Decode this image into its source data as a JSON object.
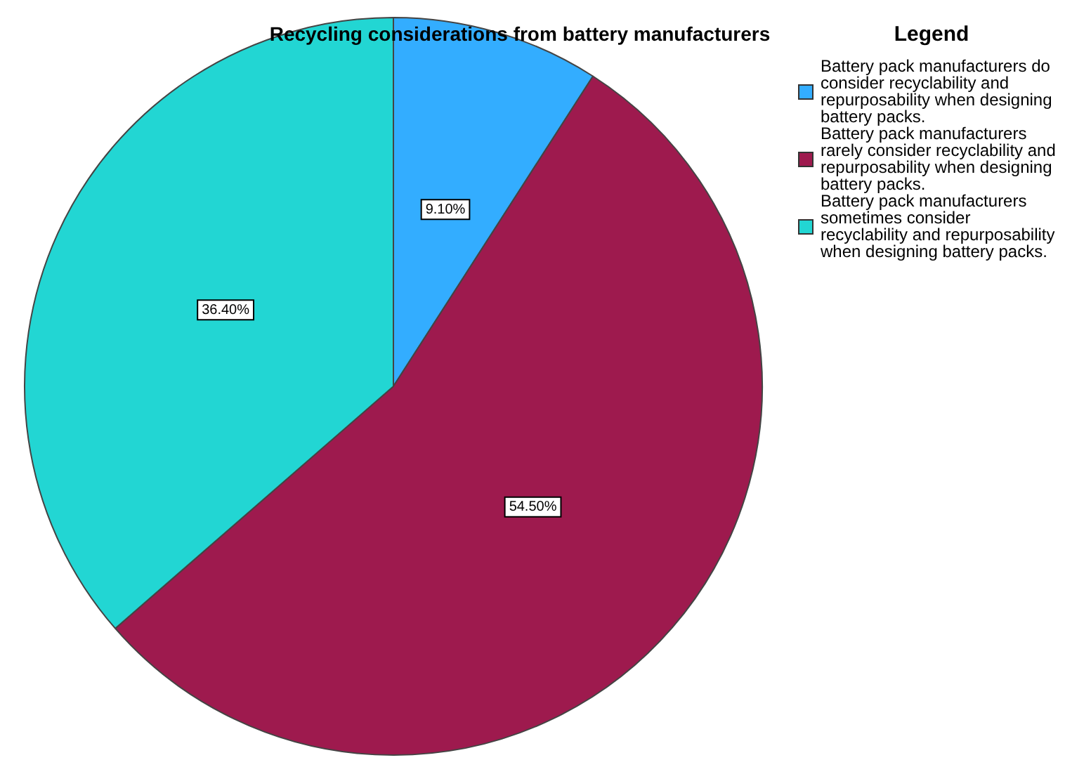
{
  "chart_data": {
    "type": "pie",
    "title": "Recycling considerations from battery manufacturers",
    "legend_title": "Legend",
    "legend": "top right",
    "categories": [
      "Battery pack manufacturers do consider recyclability and repurposability when designing battery packs.",
      "Battery pack manufacturers rarely consider recyclability and repurposability when designing battery packs.",
      "Battery pack manufacturers sometimes consider recyclability and repurposability when designing battery packs."
    ],
    "values": [
      9.1,
      54.5,
      36.4
    ],
    "value_labels": [
      "9.10%",
      "54.50%",
      "36.40%"
    ],
    "colors": [
      "#33adff",
      "#9e1a4e",
      "#22d6d3"
    ]
  }
}
